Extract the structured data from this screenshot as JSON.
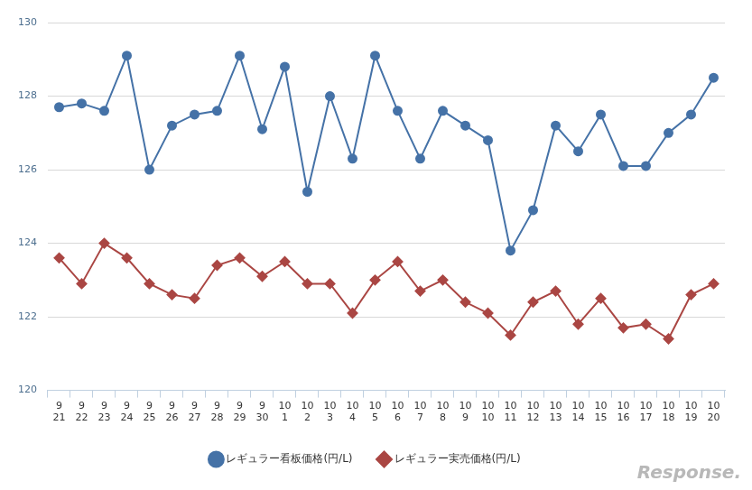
{
  "chart_data": {
    "type": "line",
    "categories": [
      [
        "9",
        "21"
      ],
      [
        "9",
        "22"
      ],
      [
        "9",
        "23"
      ],
      [
        "9",
        "24"
      ],
      [
        "9",
        "25"
      ],
      [
        "9",
        "26"
      ],
      [
        "9",
        "27"
      ],
      [
        "9",
        "28"
      ],
      [
        "9",
        "29"
      ],
      [
        "9",
        "30"
      ],
      [
        "10",
        "1"
      ],
      [
        "10",
        "2"
      ],
      [
        "10",
        "3"
      ],
      [
        "10",
        "4"
      ],
      [
        "10",
        "5"
      ],
      [
        "10",
        "6"
      ],
      [
        "10",
        "7"
      ],
      [
        "10",
        "8"
      ],
      [
        "10",
        "9"
      ],
      [
        "10",
        "10"
      ],
      [
        "10",
        "11"
      ],
      [
        "10",
        "12"
      ],
      [
        "10",
        "13"
      ],
      [
        "10",
        "14"
      ],
      [
        "10",
        "15"
      ],
      [
        "10",
        "16"
      ],
      [
        "10",
        "17"
      ],
      [
        "10",
        "18"
      ],
      [
        "10",
        "19"
      ],
      [
        "10",
        "20"
      ]
    ],
    "series": [
      {
        "name": "レギュラー看板価格(円/L)",
        "color": "#4572a7",
        "marker": "circle",
        "values": [
          127.7,
          127.8,
          127.6,
          129.1,
          126.0,
          127.2,
          127.5,
          127.6,
          129.1,
          127.1,
          128.8,
          125.4,
          128.0,
          126.3,
          129.1,
          127.6,
          126.3,
          127.6,
          127.2,
          126.8,
          123.8,
          124.9,
          127.2,
          126.5,
          127.5,
          126.1,
          126.1,
          127.0,
          127.5,
          128.5
        ]
      },
      {
        "name": "レギュラー実売価格(円/L)",
        "color": "#aa4643",
        "marker": "diamond",
        "values": [
          123.6,
          122.9,
          124.0,
          123.6,
          122.9,
          122.6,
          122.5,
          123.4,
          123.6,
          123.1,
          123.5,
          122.9,
          122.9,
          122.1,
          123.0,
          123.5,
          122.7,
          123.0,
          122.4,
          122.1,
          121.5,
          122.4,
          122.7,
          121.8,
          122.5,
          121.7,
          121.8,
          121.4,
          122.6,
          122.9
        ]
      }
    ],
    "ylim": [
      120,
      130
    ],
    "yticks": [
      120,
      122,
      124,
      126,
      128,
      130
    ],
    "grid": true,
    "legend": "bottom",
    "annotations": [
      "Response."
    ]
  }
}
